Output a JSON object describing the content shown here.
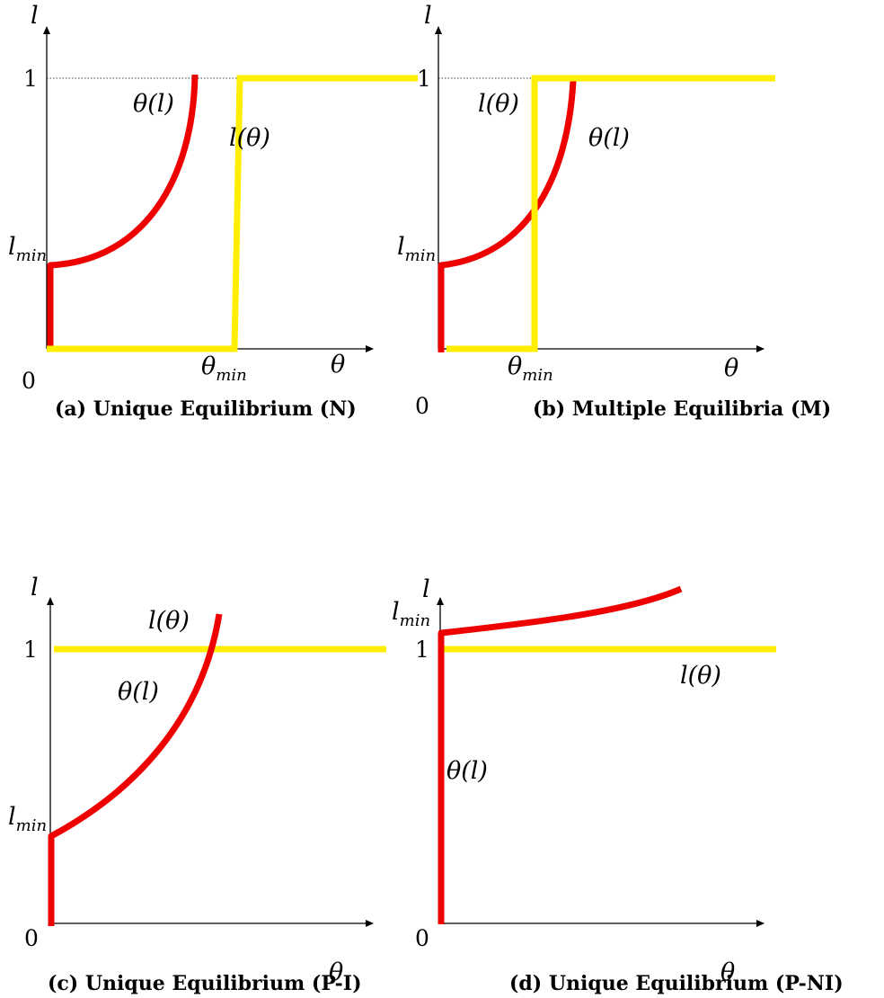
{
  "panels": [
    {
      "caption": "(a) Unique Equilibrium (N)",
      "y_axis": "l",
      "x_axis": "θ",
      "zero": "0",
      "one": "1",
      "lmin_base": "l",
      "lmin_sub": "min",
      "thetamin_base": "θ",
      "thetamin_sub": "min",
      "curve_red": "θ(l)",
      "curve_yellow": "l(θ)"
    },
    {
      "caption": "(b) Multiple Equilibria (M)",
      "y_axis": "l",
      "x_axis": "θ",
      "zero": "0",
      "one": "1",
      "lmin_base": "l",
      "lmin_sub": "min",
      "thetamin_base": "θ",
      "thetamin_sub": "min",
      "curve_red": "θ(l)",
      "curve_yellow": "l(θ)"
    },
    {
      "caption": "(c) Unique Equilibrium (P-I)",
      "y_axis": "l",
      "x_axis": "θ",
      "zero": "0",
      "one": "1",
      "lmin_base": "l",
      "lmin_sub": "min",
      "curve_red": "θ(l)",
      "curve_yellow": "l(θ)"
    },
    {
      "caption": "(d) Unique Equilibrium (P-NI)",
      "y_axis": "l",
      "x_axis": "θ",
      "zero": "0",
      "one": "1",
      "lmin_base": "l",
      "lmin_sub": "min",
      "curve_red": "θ(l)",
      "curve_yellow": "l(θ)"
    }
  ],
  "colors": {
    "red_curve": "#ee0000",
    "yellow_curve": "#ffee00",
    "axes": "#000000"
  }
}
